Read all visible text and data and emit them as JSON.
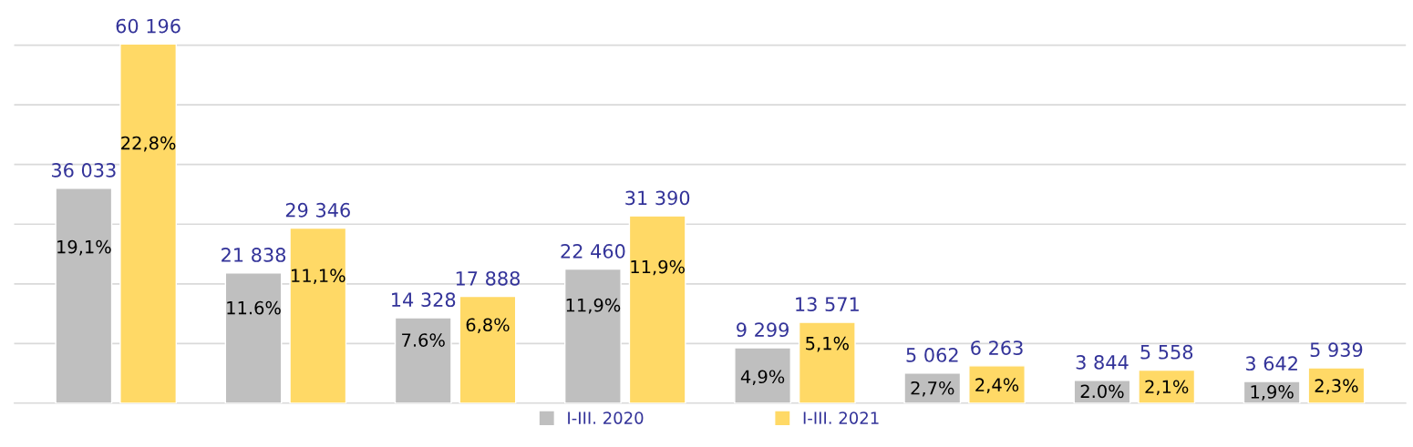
{
  "chart_data": {
    "type": "bar",
    "categories": [
      null,
      null,
      null,
      null,
      null,
      null,
      null,
      null
    ],
    "series": [
      {
        "name": "I-III. 2020",
        "color": "#bfbfbf",
        "values": [
          36033,
          21838,
          14328,
          22460,
          9299,
          5062,
          3844,
          3642
        ],
        "value_labels": [
          "36 033",
          "21 838",
          "14 328",
          "22 460",
          "9 299",
          "5 062",
          "3 844",
          "3 642"
        ]
      },
      {
        "name": "I-III. 2021",
        "color": "#ffd966",
        "values": [
          60196,
          29346,
          17888,
          31390,
          13571,
          6263,
          5558,
          5939
        ],
        "value_labels": [
          "60 196",
          "29 346",
          "17 888",
          "31 390",
          "13 571",
          "6 263",
          "5 558",
          "5 939"
        ]
      }
    ],
    "annotations": [
      "19,1%",
      "22,8%",
      "11.6%",
      "11,1%",
      "7.6%",
      "6,8%",
      "11,9%",
      "11,9%",
      "4,9%",
      "5,1%",
      "2,7%",
      "2,4%",
      "2.0%",
      "2,1%",
      "1,9%",
      "2,3%"
    ],
    "yticks": [
      {
        "value": 0,
        "label": null
      },
      {
        "value": 10000,
        "label": null
      },
      {
        "value": 20000,
        "label": null
      },
      {
        "value": 30000,
        "label": null
      },
      {
        "value": 40000,
        "label": null
      },
      {
        "value": 50000,
        "label": null
      },
      {
        "value": 60000,
        "label": null
      }
    ],
    "grid": "y",
    "legend": "bottom"
  }
}
